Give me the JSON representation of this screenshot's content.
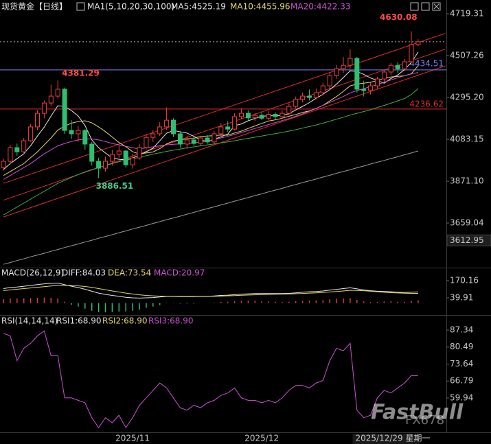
{
  "chart_data": [
    {
      "type": "candlestick",
      "title": "现货黄金【日线】",
      "indicator": "MA1(5,10,20,30,100)",
      "categories": [
        null,
        null,
        null,
        null,
        null,
        null,
        null,
        null,
        null,
        null,
        null,
        null,
        null,
        null,
        null,
        null,
        null,
        null,
        null,
        "2025/11",
        null,
        null,
        null,
        null,
        null,
        null,
        null,
        null,
        null,
        null,
        null,
        null,
        null,
        null,
        null,
        null,
        null,
        null,
        "2025/12",
        null,
        null,
        null,
        null,
        null,
        null,
        null,
        null,
        null,
        null,
        null,
        null,
        null,
        null,
        null,
        null,
        "2025/12/29 星期一",
        null,
        null,
        null,
        null,
        null,
        null
      ],
      "candles": [
        [
          3940,
          3985,
          3925,
          3972
        ],
        [
          3972,
          4055,
          3960,
          4041
        ],
        [
          4041,
          4062,
          4000,
          4020
        ],
        [
          4020,
          4090,
          4010,
          4076
        ],
        [
          4076,
          4160,
          4070,
          4146
        ],
        [
          4146,
          4230,
          4130,
          4215
        ],
        [
          4215,
          4280,
          4190,
          4267
        ],
        [
          4267,
          4360,
          4250,
          4302
        ],
        [
          4302,
          4381.29,
          4290,
          4337
        ],
        [
          4337,
          4345,
          4110,
          4128
        ],
        [
          4128,
          4180,
          4085,
          4111
        ],
        [
          4111,
          4150,
          4070,
          4128
        ],
        [
          4128,
          4135,
          4030,
          4059
        ],
        [
          4059,
          4070,
          3950,
          3972
        ],
        [
          3972,
          3990,
          3886.51,
          3937
        ],
        [
          3937,
          3995,
          3920,
          3972
        ],
        [
          3972,
          4030,
          3950,
          4007
        ],
        [
          4007,
          4050,
          3990,
          4024
        ],
        [
          4024,
          4030,
          3940,
          3954
        ],
        [
          3954,
          4010,
          3935,
          3989
        ],
        [
          3989,
          4060,
          3980,
          4041
        ],
        [
          4041,
          4110,
          4030,
          4093
        ],
        [
          4093,
          4130,
          4070,
          4111
        ],
        [
          4111,
          4170,
          4100,
          4146
        ],
        [
          4146,
          4245,
          4130,
          4180
        ],
        [
          4180,
          4190,
          4095,
          4111
        ],
        [
          4111,
          4125,
          4040,
          4059
        ],
        [
          4059,
          4100,
          4035,
          4080
        ],
        [
          4080,
          4095,
          4050,
          4062
        ],
        [
          4062,
          4100,
          4050,
          4090
        ],
        [
          4090,
          4105,
          4060,
          4070
        ],
        [
          4070,
          4125,
          4060,
          4111
        ],
        [
          4111,
          4165,
          4100,
          4146
        ],
        [
          4146,
          4175,
          4120,
          4135
        ],
        [
          4135,
          4215,
          4130,
          4198
        ],
        [
          4198,
          4240,
          4185,
          4215
        ],
        [
          4215,
          4230,
          4180,
          4192
        ],
        [
          4192,
          4215,
          4175,
          4205
        ],
        [
          4205,
          4220,
          4180,
          4190
        ],
        [
          4190,
          4225,
          4180,
          4210
        ],
        [
          4210,
          4220,
          4185,
          4198
        ],
        [
          4198,
          4230,
          4190,
          4215
        ],
        [
          4215,
          4265,
          4205,
          4250
        ],
        [
          4250,
          4300,
          4240,
          4285
        ],
        [
          4285,
          4320,
          4270,
          4302
        ],
        [
          4302,
          4335,
          4280,
          4295
        ],
        [
          4295,
          4340,
          4285,
          4319
        ],
        [
          4319,
          4370,
          4305,
          4354
        ],
        [
          4354,
          4425,
          4340,
          4406
        ],
        [
          4406,
          4460,
          4390,
          4441
        ],
        [
          4441,
          4500,
          4420,
          4458
        ],
        [
          4458,
          4540,
          4440,
          4493
        ],
        [
          4493,
          4500,
          4320,
          4337
        ],
        [
          4337,
          4380,
          4300,
          4330
        ],
        [
          4330,
          4370,
          4310,
          4354
        ],
        [
          4354,
          4400,
          4340,
          4389
        ],
        [
          4389,
          4435,
          4375,
          4424
        ],
        [
          4424,
          4470,
          4410,
          4458
        ],
        [
          4458,
          4475,
          4420,
          4440
        ],
        [
          4440,
          4490,
          4430,
          4476
        ],
        [
          4476,
          4630.08,
          4470,
          4563
        ],
        [
          4563,
          4590,
          4555,
          4577
        ]
      ],
      "up_color": "#f0403c",
      "down_color": "#2fbf71",
      "series": [
        {
          "label": "MA5:4525.19",
          "color": "#e8e8e8",
          "values": [
            3930,
            3960,
            3985,
            4010,
            4051,
            4100,
            4145,
            4201,
            4253,
            4250,
            4229,
            4201,
            4153,
            4080,
            4041,
            4014,
            3989,
            3982,
            3979,
            3989,
            4003,
            4020,
            4038,
            4076,
            4114,
            4128,
            4121,
            4115,
            4098,
            4080,
            4072,
            4083,
            4096,
            4110,
            4152,
            4161,
            4177,
            4189,
            4200,
            4202,
            4203,
            4204,
            4213,
            4232,
            4250,
            4269,
            4291,
            4311,
            4335,
            4363,
            4396,
            4430,
            4427,
            4412,
            4394,
            4381,
            4367,
            4391,
            4409,
            4437,
            4472,
            4525
          ]
        },
        {
          "label": "MA10:4455.96",
          "color": "#e6d86a",
          "values": [
            3900,
            3920,
            3940,
            3960,
            3990,
            4020,
            4055,
            4090,
            4130,
            4150,
            4165,
            4173,
            4177,
            4167,
            4146,
            4122,
            4095,
            4067,
            4046,
            4020,
            4009,
            4014,
            4019,
            4036,
            4060,
            4074,
            4080,
            4086,
            4088,
            4098,
            4100,
            4102,
            4105,
            4104,
            4115,
            4125,
            4138,
            4151,
            4164,
            4176,
            4182,
            4190,
            4200,
            4209,
            4219,
            4227,
            4240,
            4255,
            4277,
            4300,
            4326,
            4354,
            4363,
            4367,
            4372,
            4381,
            4392,
            4399,
            4402,
            4405,
            4415,
            4456
          ]
        },
        {
          "label": "MA20:4422.33",
          "color": "#d050d8",
          "values": [
            3880,
            3900,
            3920,
            3940,
            3960,
            3985,
            4010,
            4030,
            4050,
            4062,
            4072,
            4080,
            4085,
            4085,
            4080,
            4072,
            4062,
            4055,
            4048,
            4040,
            4035,
            4040,
            4045,
            4050,
            4055,
            4058,
            4060,
            4062,
            4065,
            4070,
            4075,
            4082,
            4090,
            4098,
            4108,
            4118,
            4128,
            4138,
            4148,
            4158,
            4168,
            4178,
            4188,
            4200,
            4212,
            4225,
            4240,
            4255,
            4270,
            4285,
            4300,
            4318,
            4330,
            4340,
            4350,
            4360,
            4372,
            4384,
            4395,
            4405,
            4414,
            4422
          ]
        },
        {
          "color": "#3cb043",
          "values": [
            3700,
            3720,
            3740,
            3760,
            3780,
            3800,
            3820,
            3840,
            3860,
            3875,
            3890,
            3905,
            3918,
            3930,
            3940,
            3950,
            3960,
            3970,
            3978,
            3985,
            3992,
            4000,
            4008,
            4015,
            4022,
            4028,
            4034,
            4040,
            4045,
            4050,
            4055,
            4060,
            4065,
            4070,
            4076,
            4082,
            4088,
            4094,
            4100,
            4106,
            4112,
            4118,
            4125,
            4132,
            4140,
            4148,
            4156,
            4165,
            4175,
            4185,
            4195,
            4206,
            4215,
            4224,
            4233,
            4244,
            4255,
            4266,
            4278,
            4290,
            4310,
            4340
          ]
        },
        {
          "color": "#9a9a9a",
          "values": [
            3450,
            3459,
            3469,
            3478,
            3488,
            3497,
            3506,
            3516,
            3525,
            3535,
            3544,
            3553,
            3563,
            3572,
            3582,
            3591,
            3600,
            3610,
            3619,
            3629,
            3638,
            3647,
            3657,
            3666,
            3676,
            3685,
            3694,
            3704,
            3713,
            3723,
            3732,
            3741,
            3751,
            3760,
            3770,
            3779,
            3788,
            3798,
            3807,
            3817,
            3826,
            3835,
            3845,
            3854,
            3864,
            3873,
            3882,
            3892,
            3901,
            3911,
            3920,
            3929,
            3939,
            3948,
            3958,
            3967,
            3976,
            3986,
            3995,
            4005,
            4014,
            4024
          ]
        }
      ],
      "trendlines": [
        {
          "from": [
            0,
            3860
          ],
          "to": [
            65,
            4620
          ],
          "color": "#e02a2a"
        },
        {
          "from": [
            0,
            3775
          ],
          "to": [
            65,
            4540
          ],
          "color": "#e02a2a"
        },
        {
          "from": [
            0,
            3690
          ],
          "to": [
            65,
            4455
          ],
          "color": "#e02a2a"
        }
      ],
      "hlines": [
        {
          "value": 4434.51,
          "color": "#8080ff"
        },
        {
          "value": 4236.62,
          "color": "#e02a2a"
        }
      ],
      "annotations": [
        {
          "value": 4630.08,
          "index": 60,
          "color": "#ff4a4a"
        },
        {
          "value": 4381.29,
          "index": 8,
          "color": "#ff4a4a"
        },
        {
          "value": 3886.51,
          "index": 14,
          "color": "#3fcf8f"
        }
      ],
      "price_box": 3612.95,
      "ylim": [
        3433.2,
        4788.8
      ],
      "yticks": [
        4719.31,
        4507.26,
        {
          "value": 4295.2,
          "label": "4295.20"
        },
        4083.15,
        {
          "value": 3871.1,
          "label": "3871.10"
        },
        3659.04
      ]
    },
    {
      "type": "macd",
      "title": "MACD(26,12,9)",
      "series": [
        {
          "label": "DIFF:84.03",
          "color": "#e8e8e8",
          "values": [
            110,
            118,
            122,
            128,
            134,
            140,
            146,
            150,
            152,
            140,
            128,
            118,
            105,
            90,
            76,
            66,
            58,
            52,
            44,
            40,
            38,
            40,
            42,
            46,
            52,
            52,
            50,
            50,
            50,
            52,
            52,
            54,
            58,
            60,
            64,
            68,
            70,
            72,
            72,
            72,
            72,
            72,
            74,
            78,
            82,
            86,
            88,
            92,
            98,
            104,
            110,
            116,
            108,
            100,
            94,
            90,
            88,
            86,
            82,
            80,
            82,
            84
          ]
        },
        {
          "label": "DEA:73.54",
          "color": "#e6d86a",
          "values": [
            95,
            100,
            105,
            110,
            115,
            120,
            125,
            130,
            134,
            135,
            134,
            131,
            126,
            119,
            110,
            101,
            92,
            84,
            76,
            69,
            63,
            58,
            55,
            53,
            53,
            53,
            52,
            52,
            52,
            52,
            52,
            52,
            53,
            55,
            57,
            59,
            61,
            63,
            65,
            66,
            67,
            68,
            69,
            71,
            73,
            76,
            78,
            81,
            84,
            88,
            92,
            97,
            96,
            94,
            90,
            86,
            82,
            79,
            77,
            75,
            74,
            74
          ]
        },
        {
          "label": "MACD:20.97",
          "color": "#d050d8",
          "kind": "histogram",
          "up_color": "#e0403c",
          "down_color": "#2fbf71",
          "values": [
            30,
            36,
            34,
            36,
            38,
            40,
            42,
            40,
            36,
            10,
            -12,
            -26,
            -42,
            -58,
            -68,
            -70,
            -68,
            -64,
            -64,
            -58,
            -50,
            -36,
            -26,
            -14,
            -2,
            -2,
            -4,
            -4,
            -4,
            0,
            0,
            4,
            10,
            10,
            14,
            18,
            18,
            18,
            14,
            12,
            10,
            8,
            10,
            14,
            18,
            20,
            20,
            22,
            28,
            32,
            36,
            38,
            24,
            12,
            8,
            8,
            12,
            14,
            10,
            10,
            16,
            20.97
          ]
        }
      ],
      "ylim": [
        -69.5,
        269.1
      ],
      "yticks": [
        170.16,
        39.91
      ]
    },
    {
      "type": "line",
      "title": "RSI(14,14,14)",
      "series": [
        {
          "label": "RSI1:68.90",
          "color": "#e8e8e8"
        },
        {
          "label": "RSI2:68.90",
          "color": "#e6d86a"
        },
        {
          "label": "RSI3:68.90",
          "color": "#d050d8",
          "values": [
            86,
            85,
            75,
            80,
            82,
            85,
            87,
            77,
            77,
            60,
            60,
            59,
            58,
            52,
            48,
            52,
            50,
            53,
            48,
            52,
            57,
            60,
            63,
            66,
            64,
            60,
            56,
            55,
            57,
            56,
            58,
            59,
            61,
            62,
            64,
            60,
            59,
            59,
            58,
            59,
            58,
            60,
            63,
            65,
            65,
            64,
            66,
            67,
            75,
            80,
            79,
            82,
            55,
            52,
            53,
            60,
            63,
            62,
            64,
            66,
            69,
            68.9
          ]
        }
      ],
      "ylim": [
        46.1,
        93.15
      ],
      "yticks": [
        87.34,
        80.49,
        73.64,
        66.79,
        59.94
      ]
    }
  ],
  "watermark": {
    "brand": "FastBull",
    "site": "FX678"
  }
}
